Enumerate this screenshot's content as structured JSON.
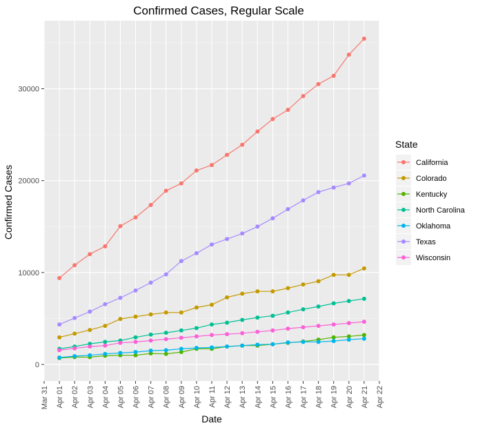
{
  "chart_data": {
    "type": "line",
    "title": "Confirmed Cases, Regular Scale",
    "xlabel": "Date",
    "ylabel": "Confirmed Cases",
    "x": [
      "Apr 01",
      "Apr 02",
      "Apr 03",
      "Apr 04",
      "Apr 05",
      "Apr 06",
      "Apr 07",
      "Apr 08",
      "Apr 09",
      "Apr 10",
      "Apr 11",
      "Apr 12",
      "Apr 13",
      "Apr 14",
      "Apr 15",
      "Apr 16",
      "Apr 17",
      "Apr 18",
      "Apr 19",
      "Apr 20",
      "Apr 21"
    ],
    "x_ticks": [
      "Mar 31",
      "Apr 01",
      "Apr 02",
      "Apr 03",
      "Apr 04",
      "Apr 05",
      "Apr 06",
      "Apr 07",
      "Apr 08",
      "Apr 09",
      "Apr 10",
      "Apr 11",
      "Apr 12",
      "Apr 13",
      "Apr 14",
      "Apr 15",
      "Apr 16",
      "Apr 17",
      "Apr 18",
      "Apr 19",
      "Apr 20",
      "Apr 21",
      "Apr 22"
    ],
    "xlim": [
      "Mar 31",
      "Apr 22"
    ],
    "y_ticks": [
      0,
      10000,
      20000,
      30000
    ],
    "ylim": [
      -1800,
      37400
    ],
    "grid": true,
    "legend": {
      "title": "State",
      "placement": "right"
    },
    "series": [
      {
        "name": "California",
        "color": "#F8766D",
        "values": [
          9400,
          10800,
          12000,
          12850,
          15050,
          16000,
          17350,
          18900,
          19700,
          21100,
          21700,
          22800,
          23900,
          25350,
          26700,
          27700,
          29200,
          30500,
          31400,
          33700,
          35450
        ]
      },
      {
        "name": "Colorado",
        "color": "#C49A00",
        "values": [
          2950,
          3350,
          3750,
          4200,
          4950,
          5200,
          5450,
          5650,
          5650,
          6200,
          6500,
          7300,
          7700,
          7950,
          7950,
          8300,
          8700,
          9050,
          9750,
          9750,
          10450
        ]
      },
      {
        "name": "Kentucky",
        "color": "#53B400",
        "values": [
          700,
          800,
          800,
          950,
          1000,
          1000,
          1200,
          1150,
          1350,
          1700,
          1700,
          1950,
          2050,
          2050,
          2200,
          2350,
          2500,
          2700,
          2950,
          3050,
          3200
        ]
      },
      {
        "name": "North Carolina",
        "color": "#00C094",
        "values": [
          1700,
          1950,
          2250,
          2450,
          2600,
          2950,
          3250,
          3450,
          3700,
          3950,
          4350,
          4550,
          4850,
          5100,
          5300,
          5650,
          6000,
          6300,
          6650,
          6900,
          7150
        ]
      },
      {
        "name": "Oklahoma",
        "color": "#00B6EB",
        "values": [
          750,
          900,
          1000,
          1150,
          1250,
          1350,
          1500,
          1550,
          1700,
          1800,
          1850,
          1950,
          2050,
          2150,
          2200,
          2400,
          2450,
          2450,
          2550,
          2700,
          2800
        ]
      },
      {
        "name": "Texas",
        "color": "#A58AFF",
        "values": [
          4350,
          5050,
          5750,
          6550,
          7250,
          8050,
          8900,
          9800,
          11250,
          12100,
          13050,
          13650,
          14250,
          15000,
          15900,
          16900,
          17850,
          18750,
          19250,
          19700,
          20550
        ]
      },
      {
        "name": "Wisconsin",
        "color": "#FB61D7",
        "values": [
          1550,
          1750,
          1950,
          2050,
          2350,
          2450,
          2600,
          2750,
          2900,
          3050,
          3200,
          3300,
          3400,
          3550,
          3700,
          3900,
          4050,
          4200,
          4350,
          4500,
          4650
        ]
      }
    ]
  }
}
